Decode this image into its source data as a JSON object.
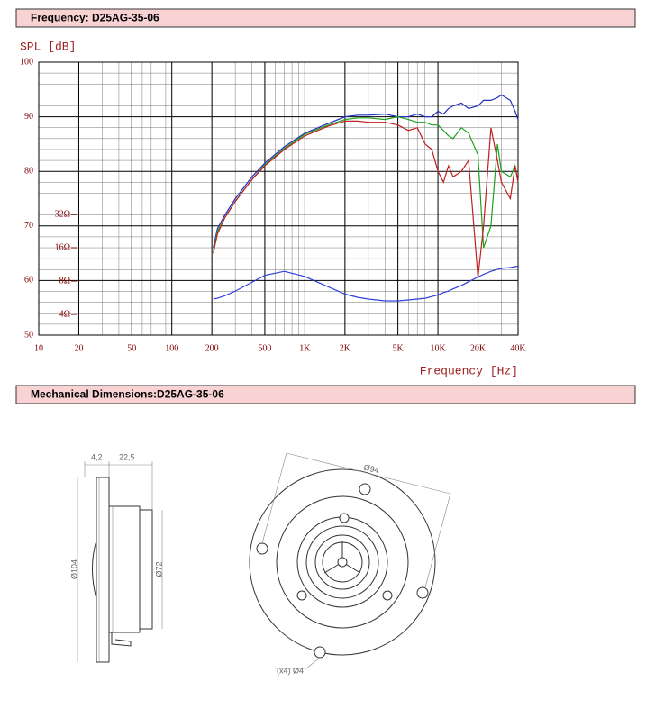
{
  "header": {
    "title": "Frequency: D25AG-35-06"
  },
  "chart_data": {
    "type": "line",
    "y_label": "SPL [dB]",
    "x_label": "Frequency [Hz]",
    "x_scale": "log",
    "xlim": [
      10,
      40000
    ],
    "xticks": [
      10,
      20,
      50,
      100,
      200,
      500,
      {
        "value": 1000,
        "label": "1K"
      },
      {
        "value": 2000,
        "label": "2K"
      },
      {
        "value": 5000,
        "label": "5K"
      },
      {
        "value": 10000,
        "label": "10K"
      },
      {
        "value": 20000,
        "label": "20K"
      },
      {
        "value": 40000,
        "label": "40K"
      }
    ],
    "ylim": [
      50,
      100
    ],
    "yticks": [
      50,
      60,
      70,
      80,
      90,
      100
    ],
    "y2_scale": "log",
    "y2lim": [
      2.6,
      760
    ],
    "y2ticks": [
      {
        "value": 4,
        "label": "4Ω"
      },
      {
        "value": 8,
        "label": "8Ω"
      },
      {
        "value": 16,
        "label": "16Ω"
      },
      {
        "value": 32,
        "label": "32Ω"
      }
    ],
    "grid": true,
    "minor_grid": true,
    "x": [
      205,
      220,
      250,
      300,
      400,
      500,
      700,
      1000,
      1500,
      2000,
      2500,
      3000,
      4000,
      5000,
      6000,
      7000,
      8000,
      9000,
      10000,
      11000,
      12000,
      13000,
      15000,
      17000,
      20000,
      22000,
      25000,
      28000,
      30000,
      35000,
      38000,
      40000
    ],
    "series": [
      {
        "color": "#2030c0",
        "values": [
          66,
          69.5,
          72,
          75,
          79,
          81.5,
          84.5,
          87,
          88.8,
          90,
          90.3,
          90.3,
          90.5,
          90,
          90,
          90.5,
          90,
          90,
          91,
          90.5,
          91.5,
          92,
          92.5,
          91.5,
          92,
          93,
          93,
          93.5,
          94,
          93,
          91,
          89.5
        ]
      },
      {
        "color": "#20a020",
        "values": [
          65.5,
          69,
          71.5,
          74.5,
          78.5,
          81.2,
          84.2,
          86.8,
          88.5,
          89.5,
          89.8,
          89.8,
          89.5,
          90,
          89.5,
          89,
          89,
          88.5,
          88.5,
          87.5,
          86.5,
          86,
          88,
          87,
          83,
          66,
          70,
          85,
          80,
          79,
          81,
          78
        ]
      },
      {
        "color": "#c02020",
        "values": [
          65,
          68.5,
          71.5,
          74.5,
          78.5,
          81,
          84,
          86.5,
          88.3,
          89.2,
          89.2,
          89,
          89,
          88.5,
          87.5,
          88,
          85,
          84,
          80,
          78,
          81,
          79,
          80,
          82,
          60.5,
          70,
          88,
          82,
          78,
          75,
          81,
          78
        ]
      },
      {
        "color": "#3040e0",
        "axis": "y2",
        "values": [
          5.5,
          5.6,
          5.9,
          6.5,
          7.8,
          9.0,
          9.8,
          8.8,
          7.1,
          6.1,
          5.7,
          5.5,
          5.3,
          5.3,
          5.4,
          5.5,
          5.6,
          5.8,
          6.0,
          6.3,
          6.5,
          6.8,
          7.3,
          7.9,
          8.7,
          9.2,
          9.8,
          10.2,
          10.4,
          10.6,
          10.8,
          10.9
        ]
      }
    ]
  },
  "mechanical": {
    "title": "Mechanical Dimensions:D25AG-35-06",
    "labels": {
      "depth_flange": "4,2",
      "depth_body": "22,5",
      "flange_dia": "Ø104",
      "body_dia": "Ø72",
      "bolt_circle": "Ø94",
      "holes": "(x4) Ø4"
    }
  }
}
